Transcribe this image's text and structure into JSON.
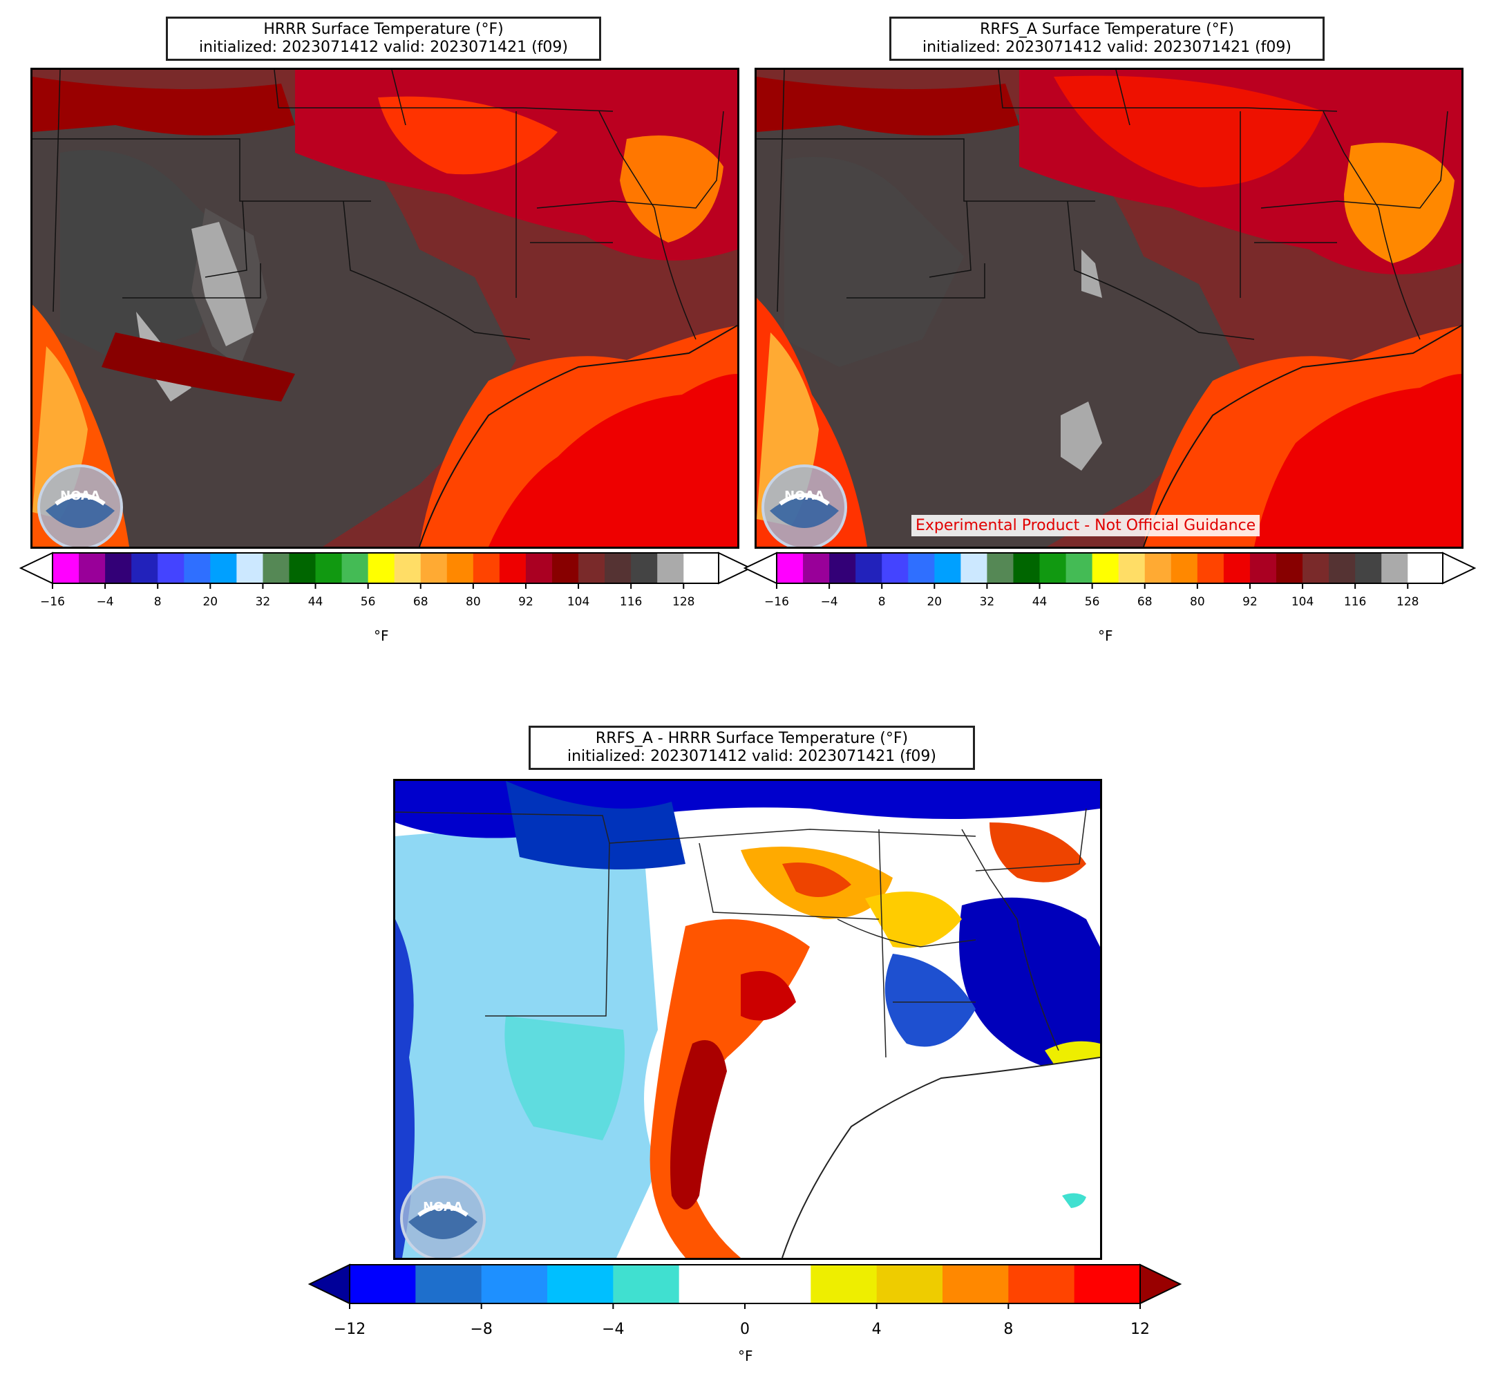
{
  "panels": [
    {
      "id": "hrrr",
      "title_line1": "HRRR Surface Temperature (°F)",
      "title_line2": "initialized: 2023071412 valid: 2023071421 (f09)"
    },
    {
      "id": "rrfs",
      "title_line1": "RRFS_A Surface Temperature (°F)",
      "title_line2": "initialized: 2023071412 valid: 2023071421 (f09)"
    },
    {
      "id": "diff",
      "title_line1": "RRFS_A - HRRR Surface Temperature (°F)",
      "title_line2": "initialized: 2023071412 valid: 2023071421 (f09)"
    }
  ],
  "disclaimer": "Experimental Product - Not Official Guidance",
  "logo_text": "NOAA",
  "temp_colorbar": {
    "unit": "°F",
    "min": -16,
    "max": 136,
    "step": 6,
    "extend": "both",
    "ticks": [
      -16,
      -4,
      8,
      20,
      32,
      44,
      56,
      68,
      80,
      92,
      104,
      116,
      128
    ],
    "tick_labels": [
      "−16",
      "−4",
      "8",
      "20",
      "32",
      "44",
      "56",
      "68",
      "80",
      "92",
      "104",
      "116",
      "128"
    ],
    "colors": [
      "#ff00ff",
      "#990099",
      "#330077",
      "#2222bb",
      "#4444ff",
      "#2f6fff",
      "#00a0ff",
      "#cce8ff",
      "#558855",
      "#006600",
      "#119911",
      "#44bb55",
      "#ffff00",
      "#ffdd66",
      "#ffaa33",
      "#ff8800",
      "#ff4400",
      "#ee0000",
      "#aa0022",
      "#880000",
      "#7a2a2a",
      "#553333",
      "#444444",
      "#aaaaaa",
      "#ffffff"
    ],
    "under_color": "#ffffff",
    "over_color": "#ffffff"
  },
  "diff_colorbar": {
    "unit": "°F",
    "min": -12,
    "max": 12,
    "step": 2,
    "extend": "both",
    "ticks": [
      -12,
      -8,
      -4,
      0,
      4,
      8,
      12
    ],
    "tick_labels": [
      "−12",
      "−8",
      "−4",
      "0",
      "4",
      "8",
      "12"
    ],
    "colors": [
      "#0000ff",
      "#1e6fcc",
      "#1e90ff",
      "#00bfff",
      "#40e0d0",
      "#ffffff",
      "#ffffff",
      "#eeee00",
      "#eecc00",
      "#ff8800",
      "#ff4400",
      "#ff0000"
    ],
    "under_color": "#000099",
    "over_color": "#990000"
  }
}
